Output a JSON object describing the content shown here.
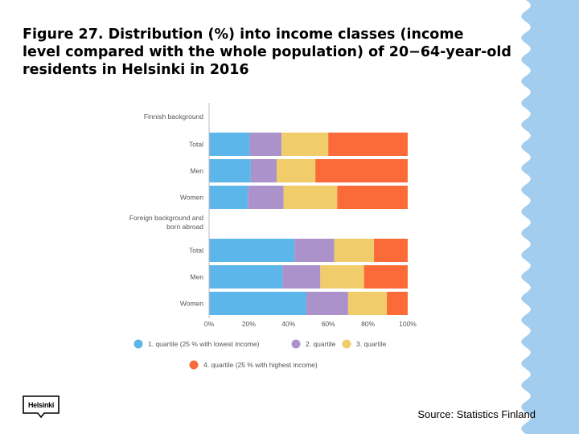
{
  "slide": {
    "title": "Figure 27. Distribution (%) into income classes (income\nlevel compared with the whole population) of 20−64-year-old\nresidents in Helsinki in 2016",
    "source": "Source: Statistics Finland",
    "logo_text": "Helsinki",
    "accent_color": "#a3cdee"
  },
  "chart_data": {
    "type": "bar",
    "orientation": "horizontal",
    "stacked": true,
    "groups": [
      {
        "label": "Finnish background",
        "categories": [
          "Total",
          "Men",
          "Women"
        ]
      },
      {
        "label": "Foreign background and\nborn abroad",
        "categories": [
          "Total",
          "Men",
          "Women"
        ]
      }
    ],
    "series": [
      {
        "name": "1. quartile (25 % with lowest income)",
        "color": "#5db6e9",
        "values": [
          20.5,
          21,
          19.5,
          43,
          37,
          49
        ]
      },
      {
        "name": "2. quartile",
        "color": "#ab92cb",
        "values": [
          16,
          13,
          18,
          20,
          19,
          21
        ]
      },
      {
        "name": "3. quartile",
        "color": "#f0cd6a",
        "values": [
          23.5,
          19.5,
          27,
          20,
          22,
          19.5
        ]
      },
      {
        "name": "4. quartile (25 % with highest income)",
        "color": "#fb6b3a",
        "values": [
          40,
          46.5,
          35.5,
          17,
          22,
          10.5
        ]
      }
    ],
    "x_ticks": [
      "0%",
      "20%",
      "40%",
      "60%",
      "80%",
      "100%"
    ],
    "xlim": [
      0,
      100
    ],
    "grid": false,
    "legend_position": "bottom"
  }
}
